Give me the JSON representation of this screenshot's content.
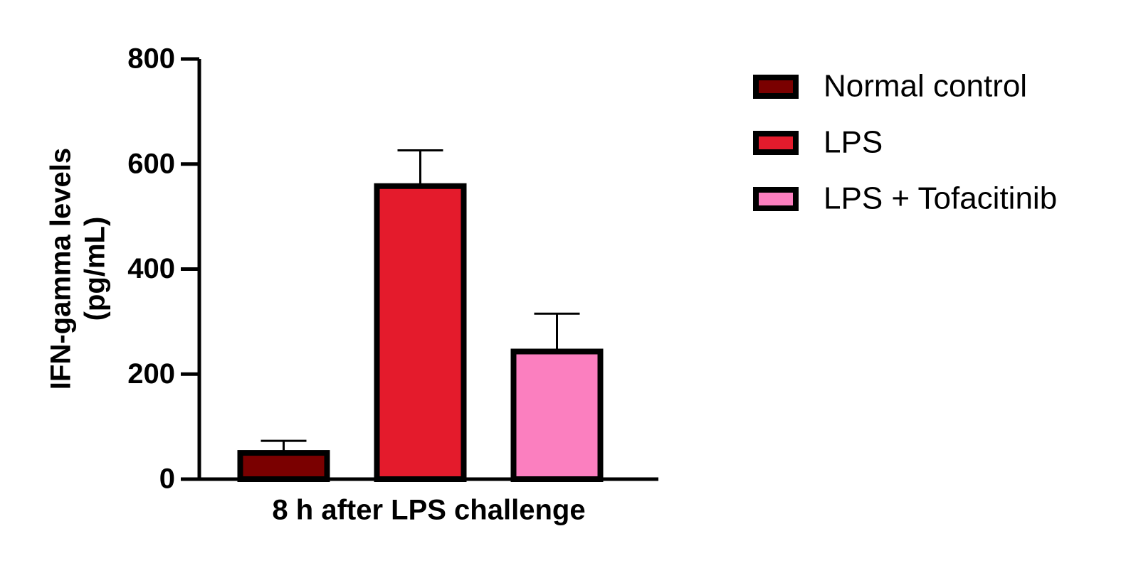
{
  "chart_data": {
    "type": "bar",
    "y_label_lines": [
      "IFN-gamma levels",
      "(pg/mL)"
    ],
    "categories": [
      "8 h after LPS challenge"
    ],
    "series": [
      {
        "name": "Normal control",
        "color": "#7a0000",
        "values": [
          50
        ],
        "errors": [
          23
        ]
      },
      {
        "name": "LPS",
        "color": "#e41b2c",
        "values": [
          558
        ],
        "errors": [
          68
        ]
      },
      {
        "name": "LPS + Tofacitinib",
        "color": "#fb7fbf",
        "values": [
          243
        ],
        "errors": [
          72
        ]
      }
    ],
    "ylim": [
      0,
      800
    ],
    "yticks": [
      0,
      200,
      400,
      600,
      800
    ],
    "grid": false,
    "legend": "right"
  }
}
